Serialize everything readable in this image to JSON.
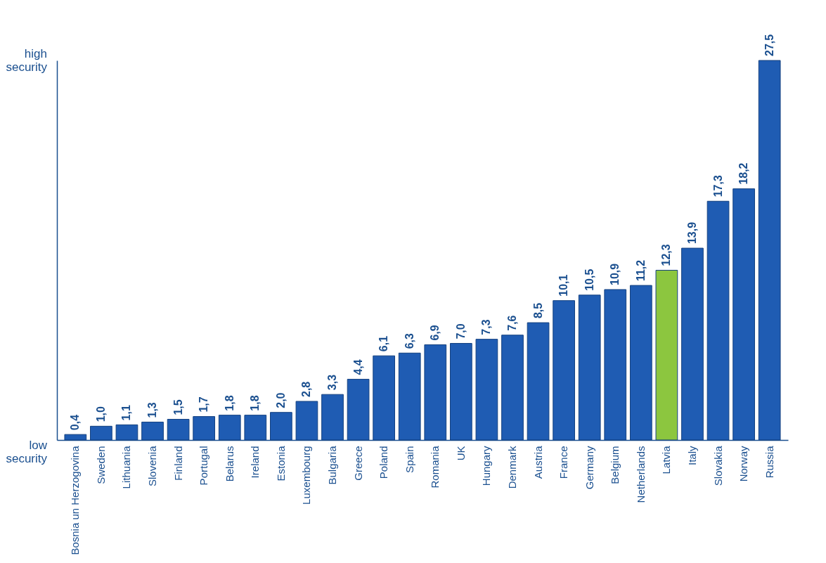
{
  "chart_data": {
    "type": "bar",
    "categories": [
      "Bosnia un Herzogovina",
      "Sweden",
      "Lithuania",
      "Slovenia",
      "Finland",
      "Portugal",
      "Belarus",
      "Ireland",
      "Estonia",
      "Luxembourg",
      "Bulgaria",
      "Greece",
      "Poland",
      "Spain",
      "Romania",
      "UK",
      "Hungary",
      "Denmark",
      "Austria",
      "France",
      "Germany",
      "Belgium",
      "Netherlands",
      "Latvia",
      "Italy",
      "Slovakia",
      "Norway",
      "Russia"
    ],
    "values": [
      0.4,
      1.0,
      1.1,
      1.3,
      1.5,
      1.7,
      1.8,
      1.8,
      2.0,
      2.8,
      3.3,
      4.4,
      6.1,
      6.3,
      6.9,
      7.0,
      7.3,
      7.6,
      8.5,
      10.1,
      10.5,
      10.9,
      11.2,
      12.3,
      13.9,
      17.3,
      18.2,
      27.5
    ],
    "value_labels": [
      "0,4",
      "1,0",
      "1,1",
      "1,3",
      "1,5",
      "1,7",
      "1,8",
      "1,8",
      "2,0",
      "2,8",
      "3,3",
      "4,4",
      "6,1",
      "6,3",
      "6,9",
      "7,0",
      "7,3",
      "7,6",
      "8,5",
      "10,1",
      "10,5",
      "10,9",
      "11,2",
      "12,3",
      "13,9",
      "17,3",
      "18,2",
      "27,5"
    ],
    "colors": [
      "#1f5cb3",
      "#1f5cb3",
      "#1f5cb3",
      "#1f5cb3",
      "#1f5cb3",
      "#1f5cb3",
      "#1f5cb3",
      "#1f5cb3",
      "#1f5cb3",
      "#1f5cb3",
      "#1f5cb3",
      "#1f5cb3",
      "#1f5cb3",
      "#1f5cb3",
      "#1f5cb3",
      "#1f5cb3",
      "#1f5cb3",
      "#1f5cb3",
      "#1f5cb3",
      "#1f5cb3",
      "#1f5cb3",
      "#1f5cb3",
      "#1f5cb3",
      "#8cc63f",
      "#1f5cb3",
      "#1f5cb3",
      "#1f5cb3",
      "#1f5cb3"
    ],
    "ylim": [
      0,
      27.5
    ],
    "annotations": [
      "high security",
      "low security"
    ],
    "grid": false
  }
}
